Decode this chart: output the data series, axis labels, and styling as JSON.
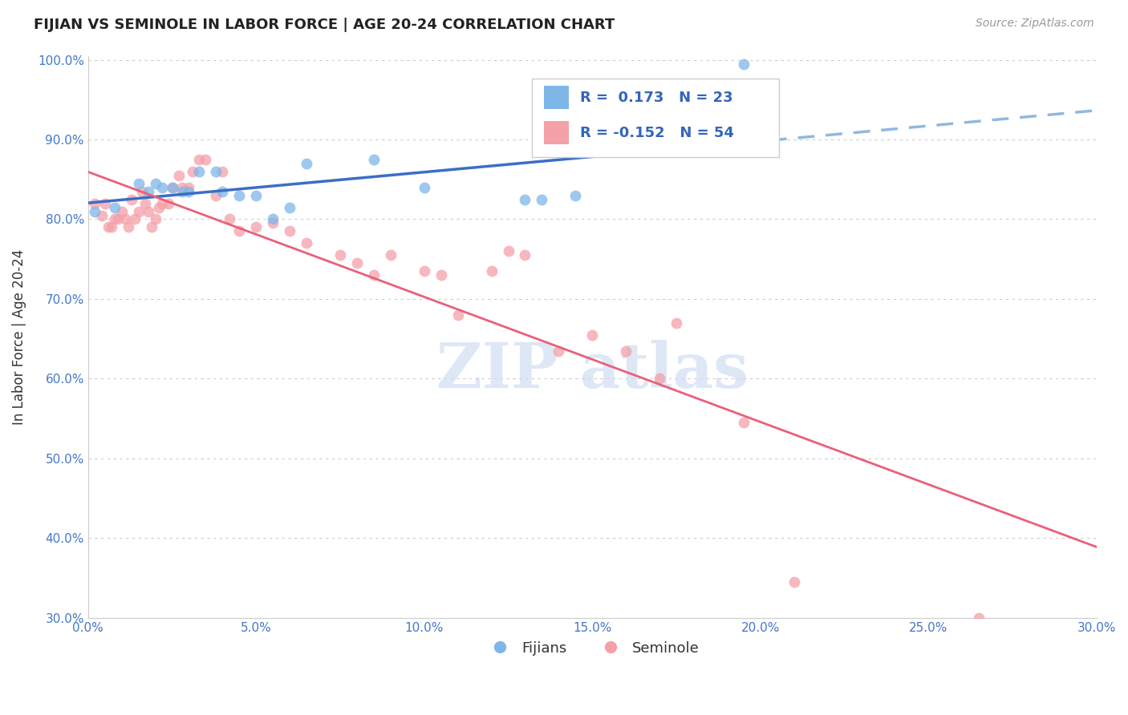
{
  "title": "FIJIAN VS SEMINOLE IN LABOR FORCE | AGE 20-24 CORRELATION CHART",
  "source": "Source: ZipAtlas.com",
  "ylabel": "In Labor Force | Age 20-24",
  "xlim": [
    0.0,
    0.3
  ],
  "ylim": [
    0.3,
    1.005
  ],
  "xtick_labels": [
    "0.0%",
    "5.0%",
    "10.0%",
    "15.0%",
    "20.0%",
    "25.0%",
    "30.0%"
  ],
  "xtick_vals": [
    0.0,
    0.05,
    0.1,
    0.15,
    0.2,
    0.25,
    0.3
  ],
  "ytick_labels": [
    "30.0%",
    "40.0%",
    "50.0%",
    "60.0%",
    "70.0%",
    "80.0%",
    "90.0%",
    "100.0%"
  ],
  "ytick_vals": [
    0.3,
    0.4,
    0.5,
    0.6,
    0.7,
    0.8,
    0.9,
    1.0
  ],
  "legend_labels_bottom": [
    "Fijians",
    "Seminole"
  ],
  "R_fijian": 0.173,
  "N_fijian": 23,
  "R_seminole": -0.152,
  "N_seminole": 54,
  "fijian_color": "#7EB6E8",
  "seminole_color": "#F4A0A8",
  "fijian_line_color": "#3B6EC6",
  "seminole_line_color": "#E8607A",
  "marker_size": 100,
  "fijian_x": [
    0.002,
    0.008,
    0.015,
    0.018,
    0.02,
    0.022,
    0.025,
    0.028,
    0.03,
    0.033,
    0.038,
    0.04,
    0.045,
    0.05,
    0.055,
    0.06,
    0.065,
    0.085,
    0.1,
    0.13,
    0.135,
    0.145,
    0.195
  ],
  "fijian_y": [
    0.81,
    0.815,
    0.845,
    0.835,
    0.845,
    0.84,
    0.84,
    0.835,
    0.835,
    0.86,
    0.86,
    0.835,
    0.83,
    0.83,
    0.8,
    0.815,
    0.87,
    0.875,
    0.84,
    0.825,
    0.825,
    0.83,
    0.995
  ],
  "seminole_x": [
    0.002,
    0.004,
    0.005,
    0.006,
    0.007,
    0.008,
    0.009,
    0.01,
    0.011,
    0.012,
    0.013,
    0.014,
    0.015,
    0.016,
    0.017,
    0.018,
    0.019,
    0.02,
    0.021,
    0.022,
    0.024,
    0.025,
    0.027,
    0.028,
    0.03,
    0.031,
    0.033,
    0.035,
    0.038,
    0.04,
    0.042,
    0.045,
    0.05,
    0.055,
    0.06,
    0.065,
    0.075,
    0.08,
    0.085,
    0.09,
    0.1,
    0.105,
    0.11,
    0.12,
    0.125,
    0.13,
    0.14,
    0.15,
    0.16,
    0.17,
    0.175,
    0.195,
    0.21,
    0.265
  ],
  "seminole_y": [
    0.82,
    0.805,
    0.82,
    0.79,
    0.79,
    0.8,
    0.8,
    0.81,
    0.8,
    0.79,
    0.825,
    0.8,
    0.81,
    0.835,
    0.82,
    0.81,
    0.79,
    0.8,
    0.815,
    0.82,
    0.82,
    0.84,
    0.855,
    0.84,
    0.84,
    0.86,
    0.875,
    0.875,
    0.83,
    0.86,
    0.8,
    0.785,
    0.79,
    0.795,
    0.785,
    0.77,
    0.755,
    0.745,
    0.73,
    0.755,
    0.735,
    0.73,
    0.68,
    0.735,
    0.76,
    0.755,
    0.635,
    0.655,
    0.635,
    0.6,
    0.67,
    0.545,
    0.345,
    0.3
  ],
  "watermark_text": "ZIPatlas",
  "background_color": "#ffffff",
  "grid_color": "#cccccc"
}
